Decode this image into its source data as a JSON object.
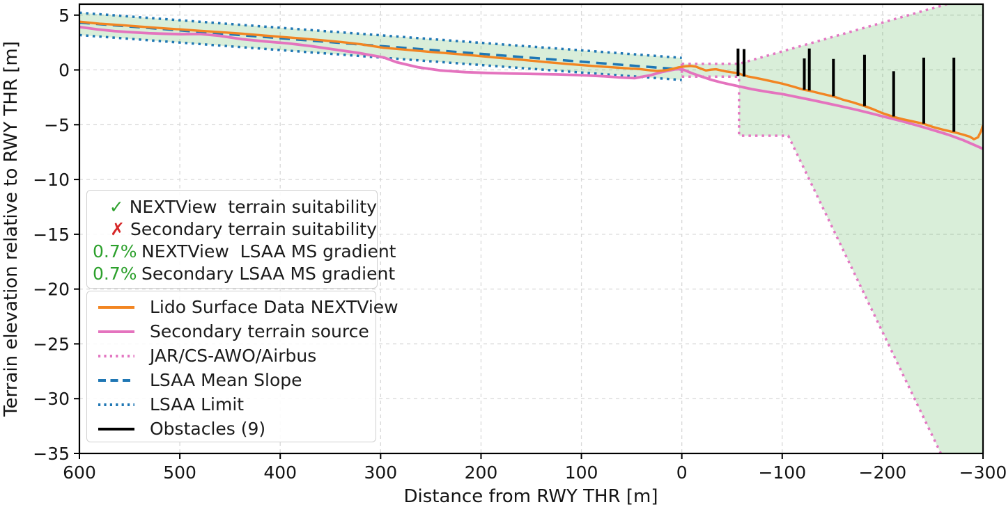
{
  "chart_data": {
    "type": "line",
    "xlabel": "Distance from RWY THR [m]",
    "ylabel": "Terrain elevation relative to RWY THR [m]",
    "xlim": [
      600,
      -300
    ],
    "ylim": [
      -35,
      6
    ],
    "x_ticks": [
      600,
      500,
      400,
      300,
      200,
      100,
      0,
      -100,
      -200,
      -300
    ],
    "y_ticks": [
      5,
      0,
      -5,
      -10,
      -15,
      -20,
      -25,
      -30,
      -35
    ],
    "grid": true,
    "grid_color": "#d8d8d8",
    "fill_color": "rgba(44,160,44,0.18)",
    "regions": [
      {
        "id": "lsaa-corridor-fill",
        "points": [
          [
            600,
            5.22
          ],
          [
            0,
            1.1
          ],
          [
            0,
            -0.92
          ],
          [
            600,
            3.18
          ]
        ]
      },
      {
        "id": "jar-awo-area-fill",
        "points": [
          [
            0,
            0.56
          ],
          [
            -57,
            0.56
          ],
          [
            -264,
            6
          ],
          [
            -300,
            6
          ],
          [
            -300,
            -35
          ],
          [
            -258,
            -35
          ],
          [
            -106,
            -6
          ],
          [
            -57,
            -6
          ],
          [
            -57,
            -0.62
          ],
          [
            0,
            -0.62
          ]
        ]
      }
    ],
    "series": [
      {
        "id": "lsaa-mean-slope",
        "name": "LSAA Mean Slope",
        "color": "#1f77b4",
        "style": "dashed",
        "width": 3.5,
        "points": [
          [
            600,
            4.32
          ],
          [
            0,
            0.04
          ]
        ]
      },
      {
        "id": "lsaa-limit-upper",
        "name": "LSAA Limit",
        "color": "#1f77b4",
        "style": "dotted",
        "width": 3.5,
        "points": [
          [
            600,
            5.22
          ],
          [
            0,
            1.1
          ]
        ]
      },
      {
        "id": "lsaa-limit-lower",
        "name": "LSAA Limit",
        "color": "#1f77b4",
        "style": "dotted",
        "width": 3.5,
        "points": [
          [
            600,
            3.18
          ],
          [
            0,
            -0.92
          ]
        ]
      },
      {
        "id": "jar-cs-awo-airbus-upper",
        "name": "JAR/CS-AWO/Airbus",
        "color": "#e377c2",
        "style": "dotted",
        "width": 3.5,
        "points": [
          [
            0,
            0.56
          ],
          [
            -57,
            0.56
          ],
          [
            -264,
            6
          ]
        ]
      },
      {
        "id": "jar-cs-awo-airbus-lower",
        "name": "JAR/CS-AWO/Airbus",
        "color": "#e377c2",
        "style": "dotted",
        "width": 3.5,
        "points": [
          [
            0,
            -0.62
          ],
          [
            -57,
            -0.62
          ],
          [
            -57,
            -6
          ],
          [
            -106,
            -6
          ],
          [
            -258,
            -35
          ]
        ]
      },
      {
        "id": "jar-cs-awo-airbus-left-edge",
        "name": "JAR/CS-AWO/Airbus",
        "color": "#e377c2",
        "style": "dotted",
        "width": 3.5,
        "points": [
          [
            0,
            0.56
          ],
          [
            0,
            -0.62
          ]
        ]
      },
      {
        "id": "secondary-terrain-source",
        "name": "Secondary terrain source",
        "color": "#e473be",
        "style": "solid",
        "width": 3.8,
        "points": [
          [
            600,
            3.92
          ],
          [
            582,
            3.7
          ],
          [
            565,
            3.54
          ],
          [
            548,
            3.44
          ],
          [
            531,
            3.35
          ],
          [
            515,
            3.3
          ],
          [
            500,
            3.26
          ],
          [
            480,
            3.28
          ],
          [
            461,
            3.12
          ],
          [
            438,
            2.8
          ],
          [
            415,
            2.6
          ],
          [
            392,
            2.42
          ],
          [
            369,
            2.17
          ],
          [
            345,
            1.85
          ],
          [
            322,
            1.55
          ],
          [
            297,
            1.14
          ],
          [
            284,
            0.7
          ],
          [
            263,
            0.25
          ],
          [
            240,
            -0.05
          ],
          [
            216,
            -0.2
          ],
          [
            193,
            -0.28
          ],
          [
            170,
            -0.33
          ],
          [
            146,
            -0.37
          ],
          [
            123,
            -0.41
          ],
          [
            100,
            -0.48
          ],
          [
            77,
            -0.58
          ],
          [
            61,
            -0.69
          ],
          [
            47,
            -0.75
          ],
          [
            31,
            -0.48
          ],
          [
            19,
            -0.17
          ],
          [
            7,
            0.05
          ],
          [
            0,
            0.08
          ],
          [
            -10,
            -0.3
          ],
          [
            -20,
            -0.62
          ],
          [
            -30,
            -0.92
          ],
          [
            -40,
            -1.16
          ],
          [
            -50,
            -1.36
          ],
          [
            -57,
            -1.5
          ],
          [
            -70,
            -1.76
          ],
          [
            -85,
            -2.0
          ],
          [
            -100,
            -2.2
          ],
          [
            -115,
            -2.48
          ],
          [
            -130,
            -2.76
          ],
          [
            -145,
            -3.05
          ],
          [
            -160,
            -3.35
          ],
          [
            -175,
            -3.66
          ],
          [
            -190,
            -4.0
          ],
          [
            -205,
            -4.35
          ],
          [
            -220,
            -4.7
          ],
          [
            -235,
            -5.08
          ],
          [
            -250,
            -5.48
          ],
          [
            -265,
            -5.9
          ],
          [
            -280,
            -6.4
          ],
          [
            -290,
            -6.8
          ],
          [
            -300,
            -7.2
          ]
        ]
      },
      {
        "id": "lido-surface-data-nextview",
        "name": "Lido Surface Data NEXTView",
        "color": "#f28522",
        "style": "solid",
        "width": 3.4,
        "points": [
          [
            600,
            4.4
          ],
          [
            580,
            4.22
          ],
          [
            560,
            4.1
          ],
          [
            540,
            3.96
          ],
          [
            520,
            3.82
          ],
          [
            500,
            3.7
          ],
          [
            480,
            3.57
          ],
          [
            460,
            3.45
          ],
          [
            440,
            3.32
          ],
          [
            420,
            3.17
          ],
          [
            400,
            3.02
          ],
          [
            380,
            2.88
          ],
          [
            360,
            2.72
          ],
          [
            340,
            2.55
          ],
          [
            320,
            2.35
          ],
          [
            297,
            2.02
          ],
          [
            275,
            1.85
          ],
          [
            252,
            1.66
          ],
          [
            228,
            1.48
          ],
          [
            205,
            1.3
          ],
          [
            182,
            1.1
          ],
          [
            159,
            0.92
          ],
          [
            136,
            0.72
          ],
          [
            113,
            0.54
          ],
          [
            90,
            0.37
          ],
          [
            66,
            0.22
          ],
          [
            50,
            0.12
          ],
          [
            42,
            0.08
          ],
          [
            31,
            -0.04
          ],
          [
            24,
            -0.1
          ],
          [
            17,
            -0.04
          ],
          [
            10,
            0.07
          ],
          [
            3,
            0.24
          ],
          [
            0,
            0.28
          ],
          [
            -4,
            0.33
          ],
          [
            -9,
            0.36
          ],
          [
            -14,
            0.3
          ],
          [
            -19,
            0.12
          ],
          [
            -24,
            -0.05
          ],
          [
            -29,
            0.02
          ],
          [
            -34,
            0.06
          ],
          [
            -39,
            -0.04
          ],
          [
            -45,
            -0.15
          ],
          [
            -50,
            -0.22
          ],
          [
            -56,
            -0.3
          ],
          [
            -60,
            -0.44
          ],
          [
            -66,
            -0.6
          ],
          [
            -72,
            -0.7
          ],
          [
            -80,
            -0.85
          ],
          [
            -90,
            -1.05
          ],
          [
            -100,
            -1.25
          ],
          [
            -110,
            -1.5
          ],
          [
            -122,
            -1.82
          ],
          [
            -127,
            -1.9
          ],
          [
            -136,
            -2.1
          ],
          [
            -145,
            -2.3
          ],
          [
            -151,
            -2.42
          ],
          [
            -160,
            -2.7
          ],
          [
            -170,
            -2.95
          ],
          [
            -182,
            -3.3
          ],
          [
            -191,
            -3.6
          ],
          [
            -200,
            -3.95
          ],
          [
            -211,
            -4.28
          ],
          [
            -220,
            -4.5
          ],
          [
            -230,
            -4.7
          ],
          [
            -241,
            -4.92
          ],
          [
            -250,
            -5.2
          ],
          [
            -260,
            -5.45
          ],
          [
            -271,
            -5.68
          ],
          [
            -280,
            -5.9
          ],
          [
            -287,
            -6.1
          ],
          [
            -291,
            -6.32
          ],
          [
            -295,
            -6.15
          ],
          [
            -298,
            -5.6
          ],
          [
            -300,
            -5.05
          ]
        ]
      }
    ],
    "obstacles": {
      "label": "Obstacles (9)",
      "count": 9,
      "color": "#000000",
      "width": 4,
      "items": [
        {
          "x": -56,
          "top": 1.95,
          "base": -0.55
        },
        {
          "x": -62,
          "top": 1.9,
          "base": -0.6
        },
        {
          "x": -122,
          "top": 1.05,
          "base": -1.8
        },
        {
          "x": -127,
          "top": 1.95,
          "base": -1.88
        },
        {
          "x": -151,
          "top": 1.0,
          "base": -2.4
        },
        {
          "x": -182,
          "top": 1.38,
          "base": -3.3
        },
        {
          "x": -211,
          "top": -0.12,
          "base": -4.25
        },
        {
          "x": -241,
          "top": 1.12,
          "base": -4.9
        },
        {
          "x": -271,
          "top": 1.12,
          "base": -5.65
        }
      ]
    }
  },
  "legend_flags": {
    "items": [
      {
        "marker": "✓",
        "marker_color": "#2ca02c",
        "label": "NEXTView  terrain suitability"
      },
      {
        "marker": "✗",
        "marker_color": "#d62728",
        "label": "Secondary terrain suitability"
      },
      {
        "marker": "0.7%",
        "marker_color": "#2ca02c",
        "label": "NEXTView  LSAA MS gradient"
      },
      {
        "marker": "0.7%",
        "marker_color": "#2ca02c",
        "label": "Secondary LSAA MS gradient"
      }
    ]
  },
  "legend_series": {
    "items": [
      {
        "style": "solid",
        "color": "#f28522",
        "label": "Lido Surface Data NEXTView"
      },
      {
        "style": "solid",
        "color": "#e473be",
        "label": "Secondary terrain source"
      },
      {
        "style": "dotted",
        "color": "#e377c2",
        "label": "JAR/CS-AWO/Airbus"
      },
      {
        "style": "dashed",
        "color": "#1f77b4",
        "label": "LSAA Mean Slope"
      },
      {
        "style": "dotted",
        "color": "#1f77b4",
        "label": "LSAA Limit"
      },
      {
        "style": "solid",
        "color": "#000000",
        "label": "Obstacles (9)"
      }
    ]
  }
}
